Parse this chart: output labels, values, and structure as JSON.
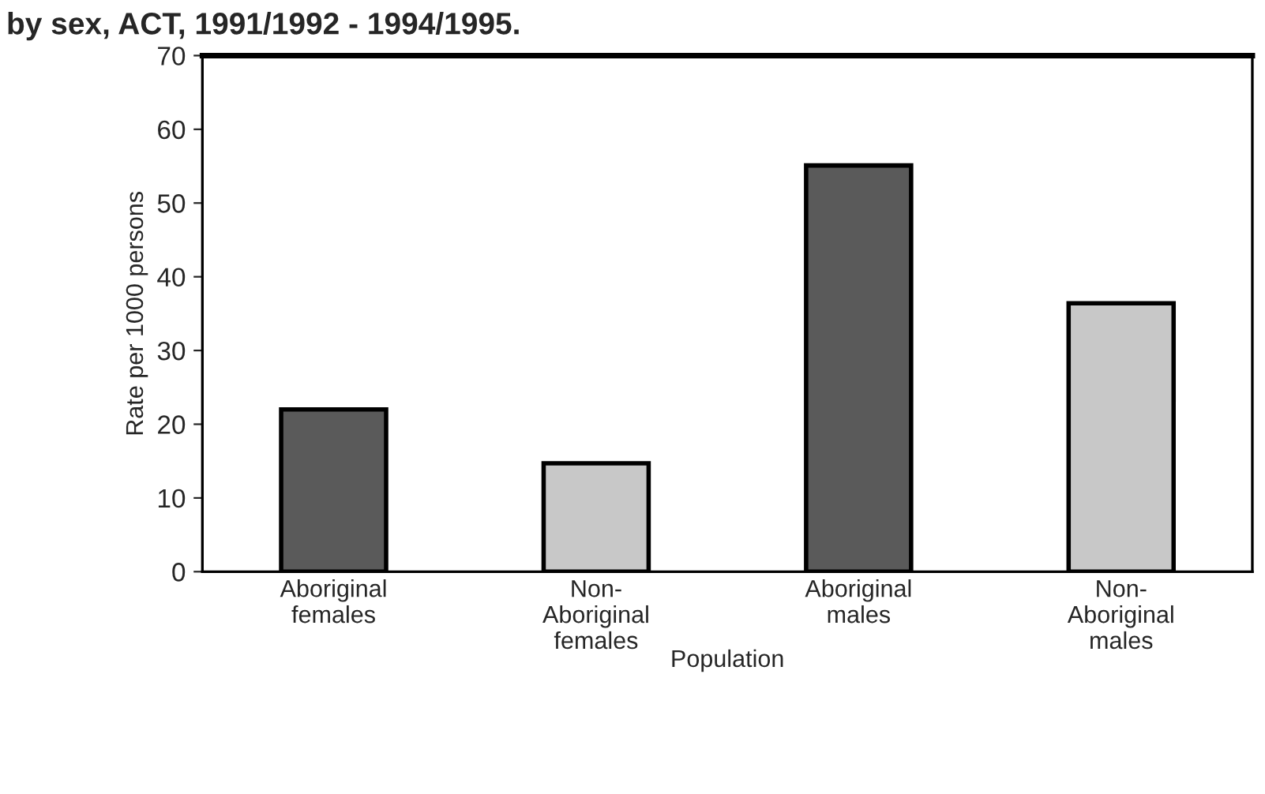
{
  "chart_data": {
    "type": "bar",
    "title": "by sex, ACT, 1991/1992 - 1994/1995.",
    "xlabel": "Population",
    "ylabel": "Rate per 1000 persons",
    "categories": [
      "Aboriginal\nfemales",
      "Non-\nAboriginal\nfemales",
      "Aboriginal\nmales",
      "Non-\nAboriginal\nmales"
    ],
    "values": [
      22,
      14.7,
      55.1,
      36.4
    ],
    "colors": [
      "#5a5a5a",
      "#c8c8c8",
      "#5a5a5a",
      "#c8c8c8"
    ],
    "ylim": [
      0,
      70
    ],
    "yticks": [
      0,
      10,
      20,
      30,
      40,
      50,
      60,
      70
    ],
    "grid": false,
    "legend": false
  }
}
